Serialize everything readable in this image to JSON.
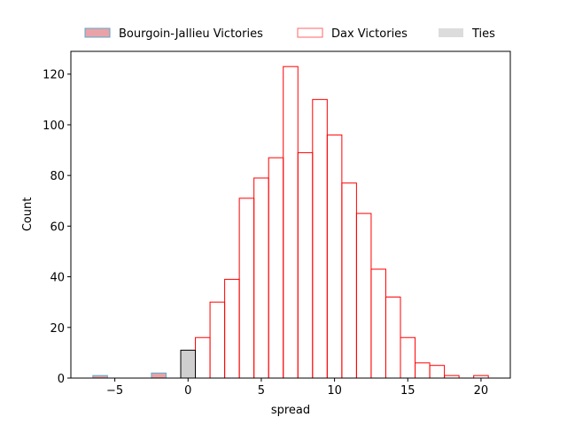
{
  "chart_data": {
    "type": "bar",
    "xlabel": "spread",
    "ylabel": "Count",
    "xlim": [
      -8,
      22
    ],
    "ylim": [
      0,
      129
    ],
    "bin_width": 1,
    "x_ticks": [
      -5,
      0,
      5,
      10,
      15,
      20
    ],
    "y_ticks": [
      0,
      20,
      40,
      60,
      80,
      100,
      120
    ],
    "grid": false,
    "legend_position": "top",
    "series": [
      {
        "name": "Bourgoin-Jallieu Victories",
        "fill": "#e9a3a8",
        "stroke": "#5aa9c9",
        "bins": [
          {
            "start": -6.5,
            "count": 1
          },
          {
            "start": -2.5,
            "count": 2
          }
        ]
      },
      {
        "name": "Dax Victories",
        "fill": "none",
        "stroke": "#ff0000",
        "bins": [
          {
            "start": 0.5,
            "count": 16
          },
          {
            "start": 1.5,
            "count": 30
          },
          {
            "start": 2.5,
            "count": 39
          },
          {
            "start": 3.5,
            "count": 71
          },
          {
            "start": 4.5,
            "count": 79
          },
          {
            "start": 5.5,
            "count": 87
          },
          {
            "start": 6.5,
            "count": 123
          },
          {
            "start": 7.5,
            "count": 89
          },
          {
            "start": 8.5,
            "count": 110
          },
          {
            "start": 9.5,
            "count": 96
          },
          {
            "start": 10.5,
            "count": 77
          },
          {
            "start": 11.5,
            "count": 65
          },
          {
            "start": 12.5,
            "count": 43
          },
          {
            "start": 13.5,
            "count": 32
          },
          {
            "start": 14.5,
            "count": 16
          },
          {
            "start": 15.5,
            "count": 6
          },
          {
            "start": 16.5,
            "count": 5
          },
          {
            "start": 17.5,
            "count": 1
          },
          {
            "start": 19.5,
            "count": 1
          }
        ]
      },
      {
        "name": "Ties",
        "fill": "#d0cfcf",
        "stroke": "#000000",
        "legend_fill": "#dcdcdc",
        "bins": [
          {
            "start": -0.5,
            "count": 11
          }
        ]
      }
    ]
  }
}
